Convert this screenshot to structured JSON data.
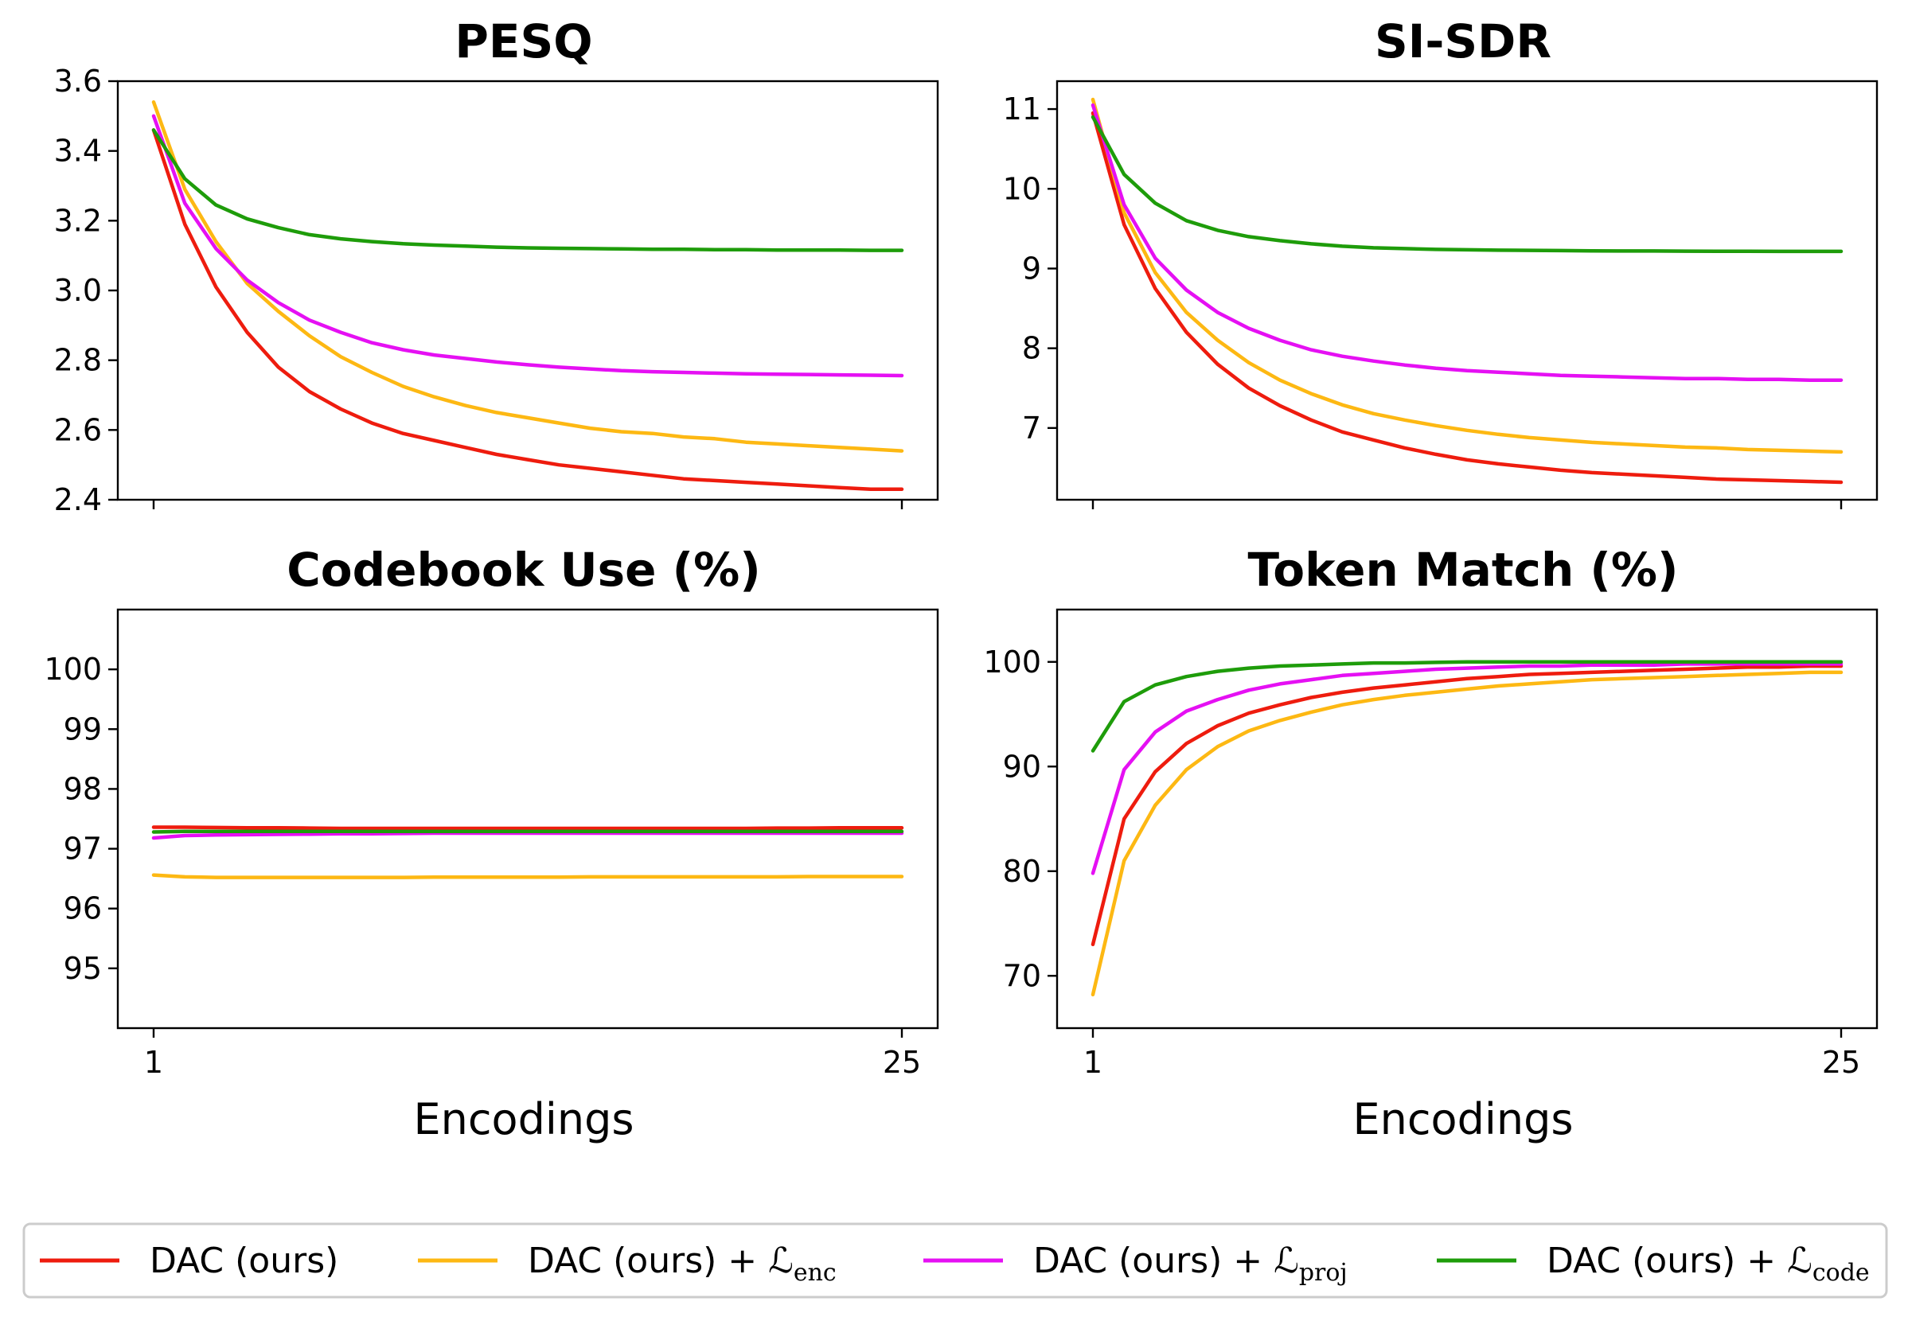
{
  "chart_data": [
    {
      "type": "line",
      "title": "PESQ",
      "xlabel": "",
      "x": [
        1,
        2,
        3,
        4,
        5,
        6,
        7,
        8,
        9,
        10,
        11,
        12,
        13,
        14,
        15,
        16,
        17,
        18,
        19,
        20,
        21,
        22,
        23,
        24,
        25
      ],
      "xlim": [
        1,
        25
      ],
      "ylim": [
        2.4,
        3.6
      ],
      "yticks": [
        "2.4",
        "2.6",
        "2.8",
        "3.0",
        "3.2",
        "3.4",
        "3.6"
      ],
      "xticks": [],
      "series": [
        {
          "name": "DAC (ours)",
          "values": [
            3.46,
            3.19,
            3.01,
            2.88,
            2.78,
            2.71,
            2.66,
            2.62,
            2.59,
            2.57,
            2.55,
            2.53,
            2.515,
            2.5,
            2.49,
            2.48,
            2.47,
            2.46,
            2.455,
            2.45,
            2.445,
            2.44,
            2.435,
            2.43,
            2.43
          ]
        },
        {
          "name": "DAC (ours) + L_enc",
          "values": [
            3.54,
            3.29,
            3.14,
            3.02,
            2.94,
            2.87,
            2.81,
            2.765,
            2.725,
            2.695,
            2.67,
            2.65,
            2.635,
            2.62,
            2.605,
            2.595,
            2.59,
            2.58,
            2.575,
            2.565,
            2.56,
            2.555,
            2.55,
            2.545,
            2.54
          ]
        },
        {
          "name": "DAC (ours) + L_proj",
          "values": [
            3.5,
            3.25,
            3.12,
            3.03,
            2.965,
            2.915,
            2.88,
            2.85,
            2.83,
            2.815,
            2.805,
            2.795,
            2.787,
            2.78,
            2.775,
            2.77,
            2.767,
            2.765,
            2.763,
            2.761,
            2.76,
            2.759,
            2.758,
            2.757,
            2.756
          ]
        },
        {
          "name": "DAC (ours) + L_code",
          "values": [
            3.46,
            3.32,
            3.245,
            3.205,
            3.18,
            3.16,
            3.148,
            3.14,
            3.134,
            3.13,
            3.127,
            3.124,
            3.122,
            3.121,
            3.12,
            3.119,
            3.118,
            3.118,
            3.117,
            3.117,
            3.116,
            3.116,
            3.116,
            3.115,
            3.115
          ]
        }
      ]
    },
    {
      "type": "line",
      "title": "SI-SDR",
      "xlabel": "",
      "x": [
        1,
        2,
        3,
        4,
        5,
        6,
        7,
        8,
        9,
        10,
        11,
        12,
        13,
        14,
        15,
        16,
        17,
        18,
        19,
        20,
        21,
        22,
        23,
        24,
        25
      ],
      "xlim": [
        1,
        25
      ],
      "ylim": [
        6.1,
        11.35
      ],
      "yticks": [
        "7",
        "8",
        "9",
        "10",
        "11"
      ],
      "xticks": [],
      "series": [
        {
          "name": "DAC (ours)",
          "values": [
            10.95,
            9.55,
            8.75,
            8.2,
            7.8,
            7.5,
            7.28,
            7.1,
            6.95,
            6.85,
            6.75,
            6.67,
            6.6,
            6.55,
            6.51,
            6.47,
            6.44,
            6.42,
            6.4,
            6.38,
            6.36,
            6.35,
            6.34,
            6.33,
            6.32
          ]
        },
        {
          "name": "DAC (ours) + L_enc",
          "values": [
            11.12,
            9.7,
            8.95,
            8.45,
            8.1,
            7.82,
            7.6,
            7.43,
            7.29,
            7.18,
            7.1,
            7.03,
            6.97,
            6.92,
            6.88,
            6.85,
            6.82,
            6.8,
            6.78,
            6.76,
            6.75,
            6.73,
            6.72,
            6.71,
            6.7
          ]
        },
        {
          "name": "DAC (ours) + L_proj",
          "values": [
            11.05,
            9.8,
            9.13,
            8.73,
            8.45,
            8.25,
            8.1,
            7.98,
            7.9,
            7.84,
            7.79,
            7.75,
            7.72,
            7.7,
            7.68,
            7.66,
            7.65,
            7.64,
            7.63,
            7.62,
            7.62,
            7.61,
            7.61,
            7.6,
            7.6
          ]
        },
        {
          "name": "DAC (ours) + L_code",
          "values": [
            10.9,
            10.18,
            9.82,
            9.6,
            9.48,
            9.4,
            9.35,
            9.31,
            9.28,
            9.26,
            9.25,
            9.24,
            9.235,
            9.23,
            9.228,
            9.225,
            9.222,
            9.22,
            9.22,
            9.218,
            9.217,
            9.216,
            9.215,
            9.215,
            9.215
          ]
        }
      ]
    },
    {
      "type": "line",
      "title": "Codebook Use (%)",
      "xlabel": "Encodings",
      "x": [
        1,
        2,
        3,
        4,
        5,
        6,
        7,
        8,
        9,
        10,
        11,
        12,
        13,
        14,
        15,
        16,
        17,
        18,
        19,
        20,
        21,
        22,
        23,
        24,
        25
      ],
      "xlim": [
        1,
        25
      ],
      "ylim": [
        94,
        101
      ],
      "yticks": [
        "95",
        "96",
        "97",
        "98",
        "99",
        "100"
      ],
      "xticks": [
        "1",
        "25"
      ],
      "series": [
        {
          "name": "DAC (ours)",
          "values": [
            97.36,
            97.36,
            97.355,
            97.35,
            97.35,
            97.345,
            97.34,
            97.34,
            97.34,
            97.34,
            97.34,
            97.34,
            97.34,
            97.34,
            97.34,
            97.34,
            97.34,
            97.34,
            97.34,
            97.34,
            97.345,
            97.345,
            97.35,
            97.35,
            97.35
          ]
        },
        {
          "name": "DAC (ours) + L_enc",
          "values": [
            96.56,
            96.53,
            96.52,
            96.52,
            96.52,
            96.52,
            96.52,
            96.52,
            96.52,
            96.525,
            96.525,
            96.525,
            96.525,
            96.525,
            96.53,
            96.53,
            96.53,
            96.53,
            96.53,
            96.53,
            96.53,
            96.535,
            96.535,
            96.535,
            96.535
          ]
        },
        {
          "name": "DAC (ours) + L_proj",
          "values": [
            97.18,
            97.22,
            97.23,
            97.235,
            97.24,
            97.245,
            97.25,
            97.25,
            97.255,
            97.26,
            97.26,
            97.26,
            97.26,
            97.26,
            97.26,
            97.26,
            97.26,
            97.26,
            97.26,
            97.26,
            97.26,
            97.26,
            97.26,
            97.26,
            97.26
          ]
        },
        {
          "name": "DAC (ours) + L_code",
          "values": [
            97.28,
            97.29,
            97.29,
            97.29,
            97.29,
            97.29,
            97.29,
            97.29,
            97.29,
            97.29,
            97.29,
            97.29,
            97.29,
            97.29,
            97.29,
            97.29,
            97.29,
            97.29,
            97.29,
            97.29,
            97.29,
            97.29,
            97.29,
            97.29,
            97.29
          ]
        }
      ]
    },
    {
      "type": "line",
      "title": "Token Match (%)",
      "xlabel": "Encodings",
      "x": [
        1,
        2,
        3,
        4,
        5,
        6,
        7,
        8,
        9,
        10,
        11,
        12,
        13,
        14,
        15,
        16,
        17,
        18,
        19,
        20,
        21,
        22,
        23,
        24,
        25
      ],
      "xlim": [
        1,
        25
      ],
      "ylim": [
        65,
        105
      ],
      "yticks": [
        "70",
        "80",
        "90",
        "100"
      ],
      "xticks": [
        "1",
        "25"
      ],
      "series": [
        {
          "name": "DAC (ours)",
          "values": [
            73.0,
            85.0,
            89.5,
            92.2,
            93.9,
            95.1,
            95.9,
            96.6,
            97.1,
            97.5,
            97.8,
            98.1,
            98.4,
            98.6,
            98.8,
            98.9,
            99.0,
            99.1,
            99.2,
            99.3,
            99.4,
            99.5,
            99.5,
            99.6,
            99.6
          ]
        },
        {
          "name": "DAC (ours) + L_enc",
          "values": [
            68.2,
            81.0,
            86.3,
            89.7,
            91.9,
            93.4,
            94.4,
            95.2,
            95.9,
            96.4,
            96.8,
            97.1,
            97.4,
            97.7,
            97.9,
            98.1,
            98.3,
            98.4,
            98.5,
            98.6,
            98.7,
            98.8,
            98.9,
            99.0,
            99.0
          ]
        },
        {
          "name": "DAC (ours) + L_proj",
          "values": [
            79.8,
            89.7,
            93.3,
            95.3,
            96.4,
            97.3,
            97.9,
            98.3,
            98.7,
            98.9,
            99.1,
            99.3,
            99.4,
            99.5,
            99.6,
            99.6,
            99.7,
            99.7,
            99.7,
            99.8,
            99.8,
            99.8,
            99.8,
            99.8,
            99.8
          ]
        },
        {
          "name": "DAC (ours) + L_code",
          "values": [
            91.5,
            96.2,
            97.8,
            98.6,
            99.1,
            99.4,
            99.6,
            99.7,
            99.8,
            99.9,
            99.9,
            99.95,
            100.0,
            100.0,
            100.0,
            100.0,
            100.0,
            100.0,
            100.0,
            100.0,
            100.0,
            100.0,
            100.0,
            100.0,
            100.0
          ]
        }
      ]
    }
  ],
  "legend": {
    "colors": [
      "#ee1c0e",
      "#fdb813",
      "#e510f3",
      "#1e9c0a"
    ],
    "items": [
      {
        "main": "DAC (ours)",
        "sub": ""
      },
      {
        "main": "DAC (ours) + ℒ",
        "sub": "enc"
      },
      {
        "main": "DAC (ours) + ℒ",
        "sub": "proj"
      },
      {
        "main": "DAC (ours) + ℒ",
        "sub": "code"
      }
    ]
  }
}
